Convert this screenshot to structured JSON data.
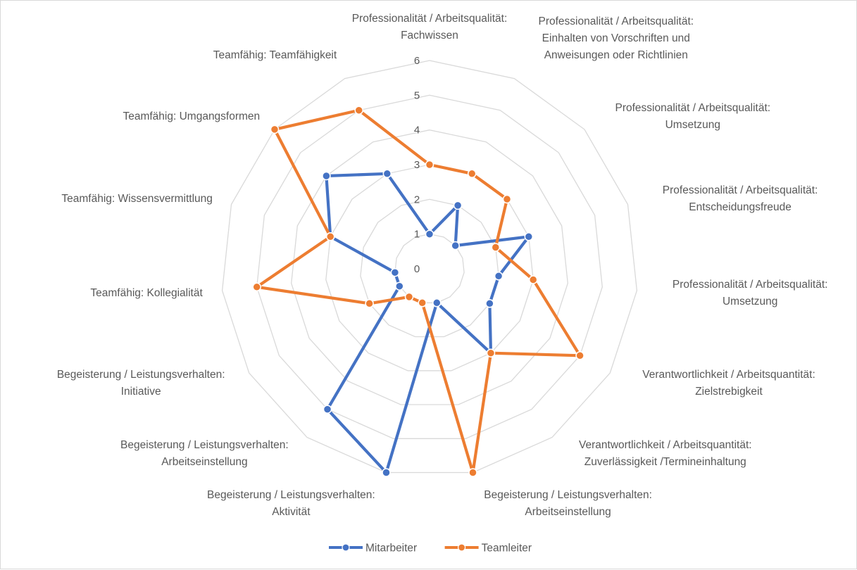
{
  "chart_data": {
    "type": "radar",
    "title": "",
    "categories": [
      [
        "Professionalität / Arbeitsqualität:",
        "Fachwissen"
      ],
      [
        "Professionalität / Arbeitsqualität:",
        "Einhalten von Vorschriften und",
        "Anweisungen oder Richtlinien"
      ],
      [
        "Professionalität / Arbeitsqualität:",
        "Umsetzung"
      ],
      [
        "Professionalität / Arbeitsqualität:",
        "Entscheidungsfreude"
      ],
      [
        "Professionalität / Arbeitsqualität:",
        "Umsetzung"
      ],
      [
        "Verantwortlichkeit / Arbeitsquantität:",
        "Zielstrebigkeit"
      ],
      [
        "Verantwortlichkeit / Arbeitsquantität:",
        "Zuverlässigkeit /Termineinhaltung"
      ],
      [
        "Begeisterung / Leistungsverhalten:",
        "Arbeitseinstellung"
      ],
      [
        "Begeisterung / Leistungsverhalten:",
        "Aktivität"
      ],
      [
        "Begeisterung / Leistungsverhalten:",
        "Arbeitseinstellung"
      ],
      [
        "Begeisterung / Leistungsverhalten:",
        "Initiative"
      ],
      [
        "Teamfähig: Kollegialität"
      ],
      [
        "Teamfähig: Wissensvermittlung"
      ],
      [
        "Teamfähig: Umgangsformen"
      ],
      [
        "Teamfähig: Teamfähigkeit"
      ]
    ],
    "radial_ticks": [
      "0",
      "1",
      "2",
      "3",
      "4",
      "5",
      "6"
    ],
    "rmax": 6,
    "grid": true,
    "legend_position": "bottom",
    "series": [
      {
        "name": "Mitarbeiter",
        "color": "#4472c4",
        "values": [
          1,
          2,
          1,
          3,
          2,
          2,
          3,
          1,
          6,
          5,
          1,
          1,
          3,
          4,
          3
        ]
      },
      {
        "name": "Teamleiter",
        "color": "#ed7d31",
        "values": [
          3,
          3,
          3,
          2,
          3,
          5,
          3,
          6,
          1,
          1,
          2,
          5,
          3,
          6,
          5
        ]
      }
    ]
  }
}
